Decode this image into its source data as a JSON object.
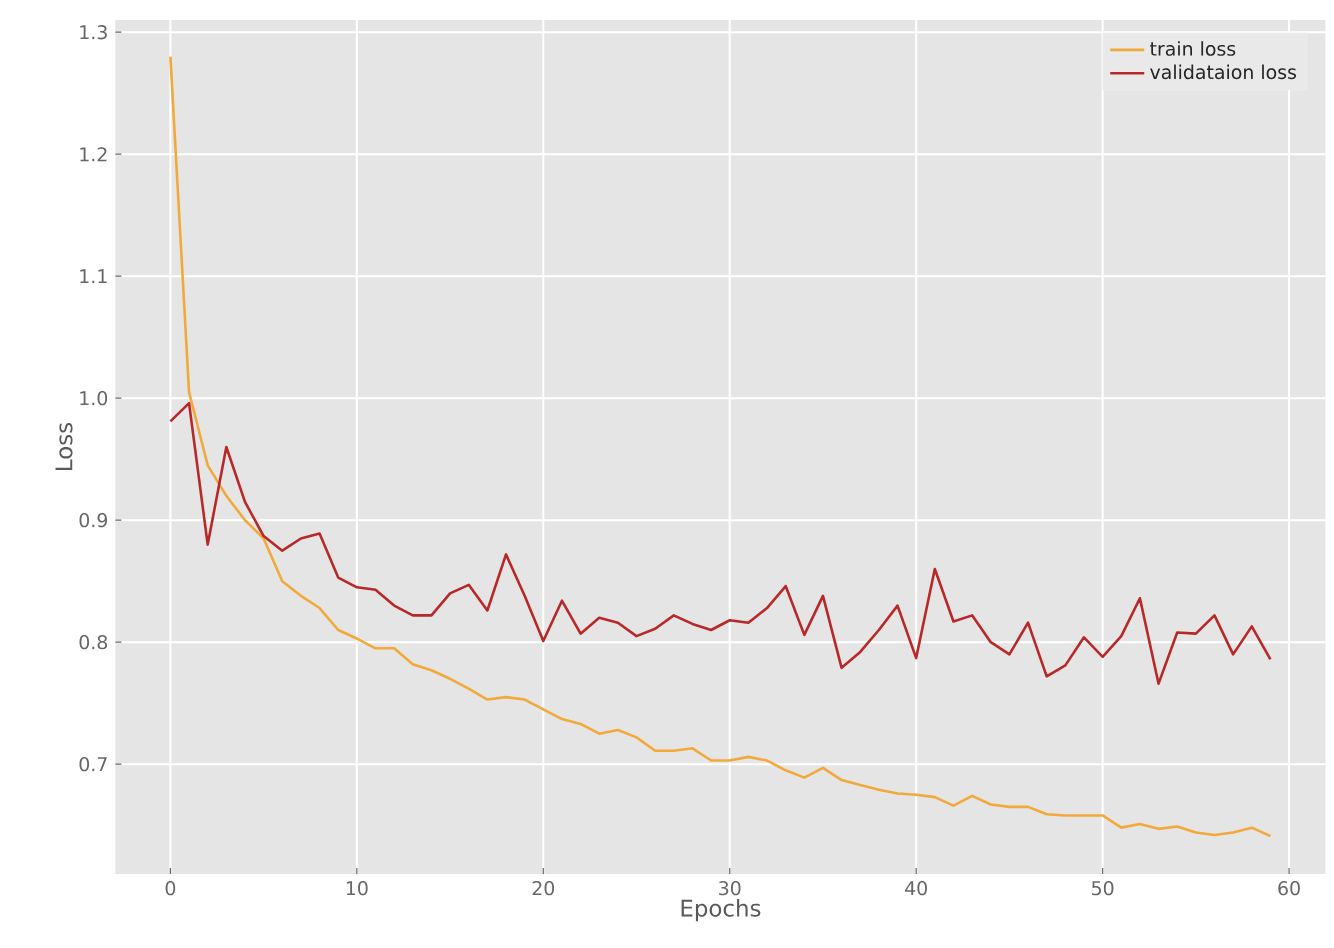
{
  "chart_data": {
    "type": "line",
    "xlabel": "Epochs",
    "ylabel": "Loss",
    "x": [
      0,
      1,
      2,
      3,
      4,
      5,
      6,
      7,
      8,
      9,
      10,
      11,
      12,
      13,
      14,
      15,
      16,
      17,
      18,
      19,
      20,
      21,
      22,
      23,
      24,
      25,
      26,
      27,
      28,
      29,
      30,
      31,
      32,
      33,
      34,
      35,
      36,
      37,
      38,
      39,
      40,
      41,
      42,
      43,
      44,
      45,
      46,
      47,
      48,
      49,
      50,
      51,
      52,
      53,
      54,
      55,
      56,
      57,
      58,
      59
    ],
    "series": [
      {
        "name": "train loss",
        "color": "#f2a93b",
        "values": [
          1.28,
          1.005,
          0.945,
          0.92,
          0.9,
          0.885,
          0.85,
          0.838,
          0.828,
          0.81,
          0.803,
          0.795,
          0.795,
          0.782,
          0.777,
          0.77,
          0.762,
          0.753,
          0.755,
          0.753,
          0.745,
          0.737,
          0.733,
          0.725,
          0.728,
          0.722,
          0.711,
          0.711,
          0.713,
          0.703,
          0.703,
          0.706,
          0.703,
          0.695,
          0.689,
          0.697,
          0.687,
          0.683,
          0.679,
          0.676,
          0.675,
          0.673,
          0.666,
          0.674,
          0.667,
          0.665,
          0.665,
          0.659,
          0.658,
          0.658,
          0.658,
          0.648,
          0.651,
          0.647,
          0.649,
          0.644,
          0.642,
          0.644,
          0.648,
          0.641
        ]
      },
      {
        "name": "validataion loss",
        "color": "#b82828",
        "values": [
          0.981,
          0.996,
          0.88,
          0.96,
          0.915,
          0.887,
          0.875,
          0.885,
          0.889,
          0.853,
          0.845,
          0.843,
          0.83,
          0.822,
          0.822,
          0.84,
          0.847,
          0.826,
          0.872,
          0.838,
          0.801,
          0.834,
          0.807,
          0.82,
          0.816,
          0.805,
          0.811,
          0.822,
          0.815,
          0.81,
          0.818,
          0.816,
          0.828,
          0.846,
          0.806,
          0.838,
          0.779,
          0.792,
          0.81,
          0.83,
          0.787,
          0.86,
          0.817,
          0.822,
          0.8,
          0.79,
          0.816,
          0.772,
          0.781,
          0.804,
          0.788,
          0.805,
          0.836,
          0.766,
          0.808,
          0.807,
          0.822,
          0.79,
          0.813,
          0.786
        ]
      }
    ],
    "xlim": [
      -2.95,
      61.95
    ],
    "ylim": [
      0.61,
      1.31
    ],
    "xticks": [
      0,
      10,
      20,
      30,
      40,
      50,
      60
    ],
    "yticks": [
      0.7,
      0.8,
      0.9,
      {
        "value": 1,
        "label": "1.0"
      },
      1.1,
      1.2,
      1.3
    ],
    "grid": true,
    "legend": "top right"
  }
}
